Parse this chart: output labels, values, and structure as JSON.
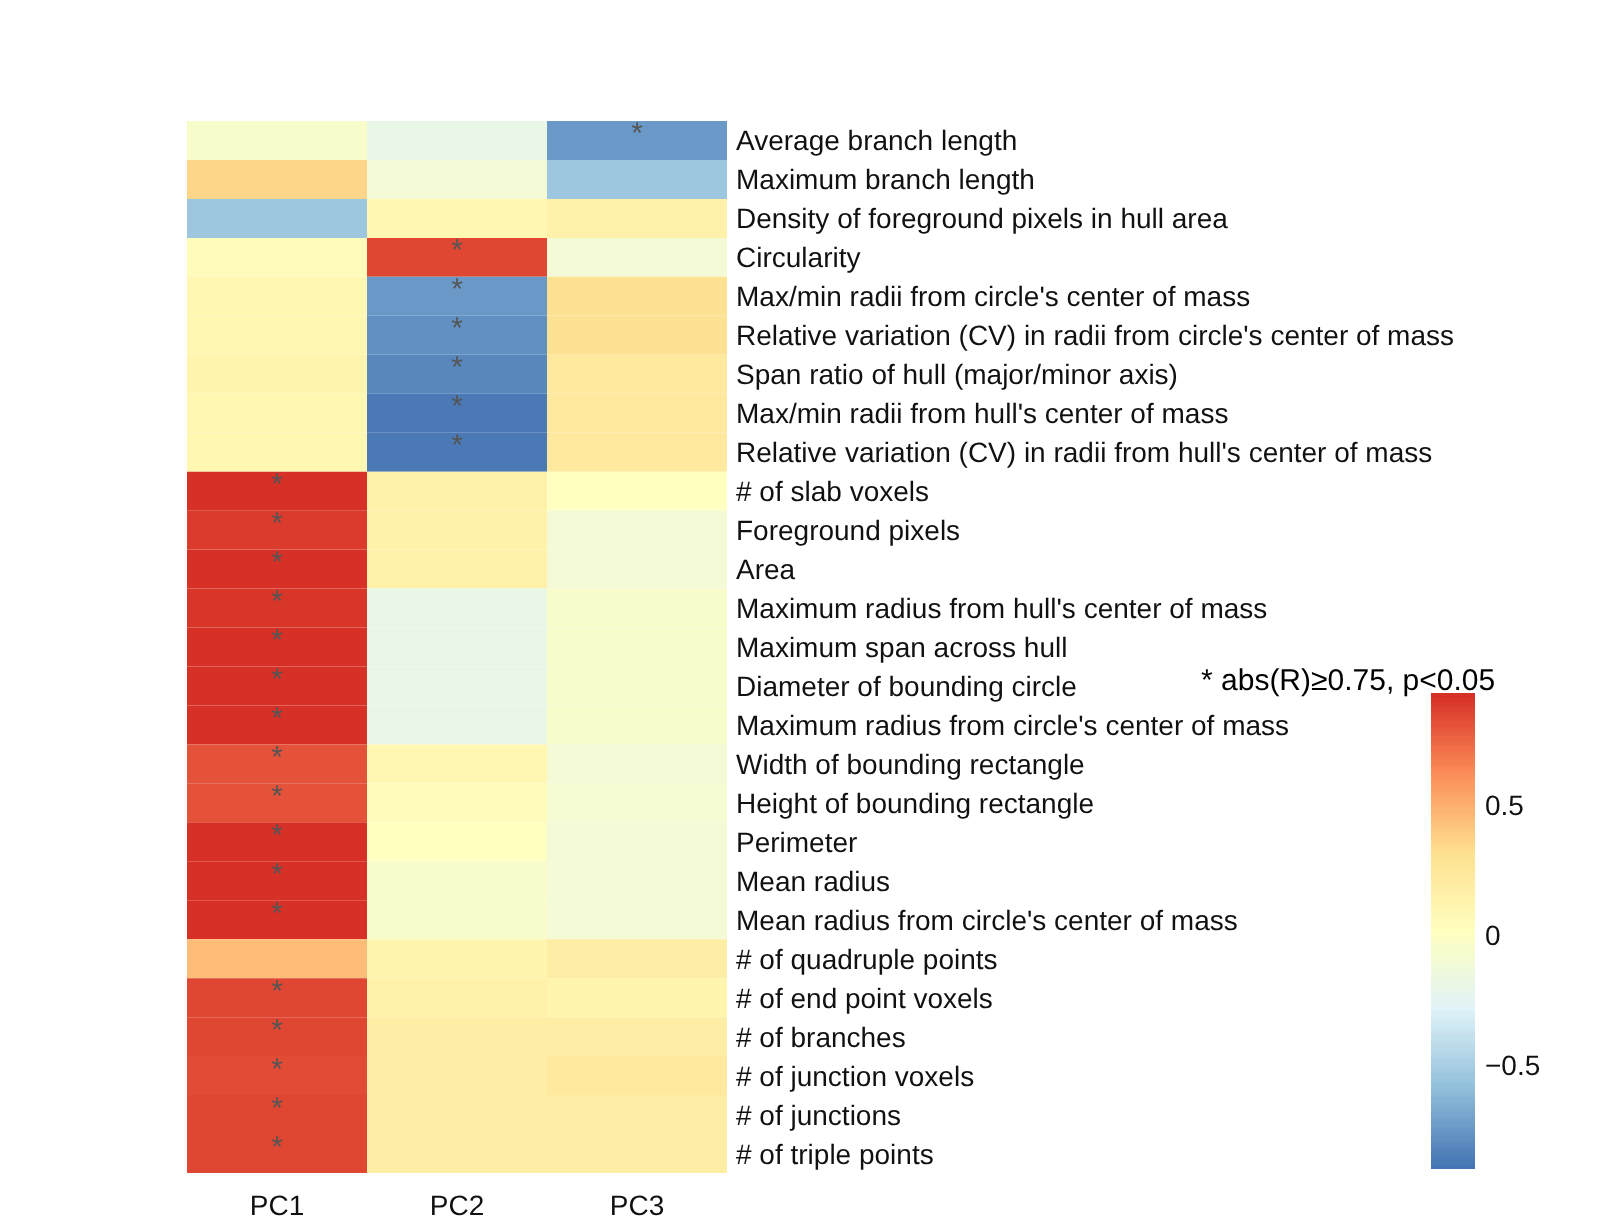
{
  "chart_data": {
    "type": "heatmap",
    "categories": [
      "PC1",
      "PC2",
      "PC3"
    ],
    "y_categories": [
      "Average branch length",
      "Maximum branch length",
      "Density of foreground pixels in hull area",
      "Circularity",
      "Max/min radii from circle's center of mass",
      "Relative variation (CV) in radii from circle's center of mass",
      "Span ratio of hull (major/minor axis)",
      "Max/min radii from hull's center of mass",
      "Relative variation (CV) in radii from hull's center of mass",
      "# of slab voxels",
      "Foreground pixels",
      "Area",
      "Maximum radius from hull's center of mass",
      "Maximum span across hull",
      "Diameter of bounding circle",
      "Maximum radius from circle's center of mass",
      "Width of bounding rectangle",
      "Height of bounding rectangle",
      "Perimeter",
      "Mean radius",
      "Mean radius from circle's center of mass",
      "# of quadruple points",
      "# of end point voxels",
      "# of branches",
      "# of junction voxels",
      "# of junctions",
      "# of triple points"
    ],
    "cells": [
      [
        -0.05,
        -0.2,
        -0.75
      ],
      [
        0.35,
        -0.1,
        -0.55
      ],
      [
        -0.55,
        0.1,
        0.15
      ],
      [
        0.05,
        0.85,
        -0.1
      ],
      [
        0.1,
        -0.75,
        0.3
      ],
      [
        0.1,
        -0.78,
        0.3
      ],
      [
        0.12,
        -0.82,
        0.22
      ],
      [
        0.1,
        -0.88,
        0.22
      ],
      [
        0.1,
        -0.88,
        0.22
      ],
      [
        0.92,
        0.15,
        0.0
      ],
      [
        0.88,
        0.15,
        -0.1
      ],
      [
        0.92,
        0.15,
        -0.1
      ],
      [
        0.9,
        -0.2,
        -0.05
      ],
      [
        0.92,
        -0.2,
        -0.05
      ],
      [
        0.92,
        -0.2,
        -0.05
      ],
      [
        0.92,
        -0.2,
        -0.05
      ],
      [
        0.82,
        0.1,
        -0.1
      ],
      [
        0.82,
        0.05,
        -0.08
      ],
      [
        0.92,
        0.0,
        -0.1
      ],
      [
        0.92,
        -0.05,
        -0.1
      ],
      [
        0.92,
        -0.05,
        -0.1
      ],
      [
        0.45,
        0.12,
        0.18
      ],
      [
        0.85,
        0.15,
        0.12
      ],
      [
        0.85,
        0.18,
        0.18
      ],
      [
        0.83,
        0.18,
        0.22
      ],
      [
        0.85,
        0.18,
        0.18
      ],
      [
        0.85,
        0.18,
        0.18
      ]
    ],
    "cell_labels": [
      [
        null,
        null,
        "*"
      ],
      [
        null,
        null,
        null
      ],
      [
        null,
        null,
        null
      ],
      [
        null,
        "*",
        null
      ],
      [
        null,
        "*",
        null
      ],
      [
        null,
        "*",
        null
      ],
      [
        null,
        "*",
        null
      ],
      [
        null,
        "*",
        null
      ],
      [
        null,
        "*",
        null
      ],
      [
        "*",
        null,
        null
      ],
      [
        "*",
        null,
        null
      ],
      [
        "*",
        null,
        null
      ],
      [
        "*",
        null,
        null
      ],
      [
        "*",
        null,
        null
      ],
      [
        "*",
        null,
        null
      ],
      [
        "*",
        null,
        null
      ],
      [
        "*",
        null,
        null
      ],
      [
        "*",
        null,
        null
      ],
      [
        "*",
        null,
        null
      ],
      [
        "*",
        null,
        null
      ],
      [
        "*",
        null,
        null
      ],
      [
        null,
        null,
        null
      ],
      [
        "*",
        null,
        null
      ],
      [
        "*",
        null,
        null
      ],
      [
        "*",
        null,
        null
      ],
      [
        "*",
        null,
        null
      ],
      [
        "*",
        null,
        null
      ]
    ],
    "clim": [
      -0.9,
      0.93
    ],
    "cticks": [
      -0.5,
      0,
      0.5
    ],
    "annotations": [
      "* abs(R)≥0.75, p<0.05"
    ]
  }
}
